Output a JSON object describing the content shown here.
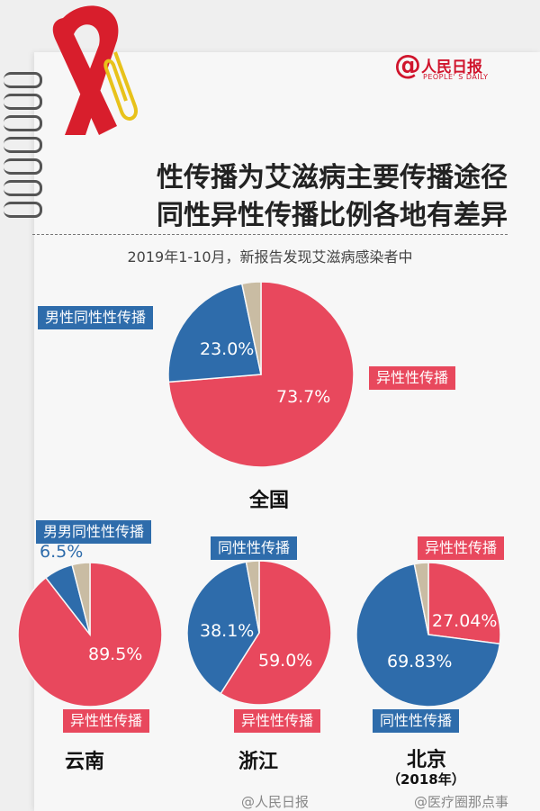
{
  "logo": {
    "cn": "人民日报",
    "en": "PEOPLE' S DAILY"
  },
  "title": {
    "line1": "性传播为艾滋病主要传播途径",
    "line2": "同性异性传播比例各地有差异"
  },
  "subtitle": "2019年1-10月，新报告发现艾滋病感染者中",
  "colors": {
    "hetero": "#e8485d",
    "homo": "#2e6cab",
    "other": "#c9bca3"
  },
  "chart_data": [
    {
      "type": "pie",
      "region": "全国",
      "slices": [
        {
          "label": "异性性传播",
          "value": 73.7,
          "text": "73.7%"
        },
        {
          "label": "男性同性性传播",
          "value": 23.0,
          "text": "23.0%"
        },
        {
          "label": "",
          "value": 3.3,
          "text": ""
        }
      ]
    },
    {
      "type": "pie",
      "region": "云南",
      "slices": [
        {
          "label": "异性性传播",
          "value": 89.5,
          "text": "89.5%"
        },
        {
          "label": "男男同性性传播",
          "value": 6.5,
          "text": "6.5%"
        },
        {
          "label": "",
          "value": 4.0,
          "text": ""
        }
      ]
    },
    {
      "type": "pie",
      "region": "浙江",
      "slices": [
        {
          "label": "异性性传播",
          "value": 59.0,
          "text": "59.0%"
        },
        {
          "label": "同性性传播",
          "value": 38.1,
          "text": "38.1%"
        },
        {
          "label": "",
          "value": 2.9,
          "text": ""
        }
      ]
    },
    {
      "type": "pie",
      "region": "北京",
      "note": "（2018年）",
      "slices": [
        {
          "label": "异性性传播",
          "value": 27.04,
          "text": "27.04%"
        },
        {
          "label": "同性性传播",
          "value": 69.83,
          "text": "69.83%"
        },
        {
          "label": "",
          "value": 3.13,
          "text": ""
        }
      ]
    }
  ],
  "footer": {
    "left": "@人民日报",
    "right": "@医疗圈那点事"
  }
}
